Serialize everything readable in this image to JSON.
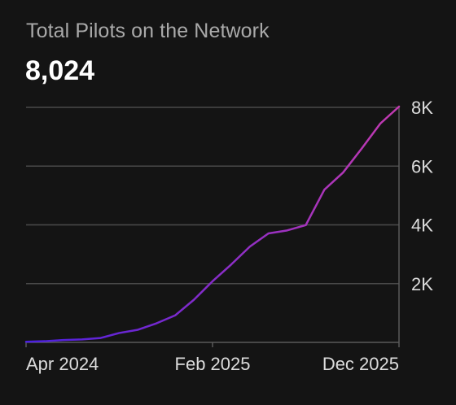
{
  "header": {
    "title": "Total Pilots on the Network",
    "total": "8,024"
  },
  "colors": {
    "background": "#141414",
    "grid": "#4a4a4a",
    "axis": "#5a5a5a",
    "text": "#dcdcdc",
    "line_start": "#4a1fe0",
    "line_end": "#c23ab0"
  },
  "chart_data": {
    "type": "line",
    "title": "Total Pilots on the Network",
    "xlabel": "",
    "ylabel": "",
    "ylim": [
      0,
      8000
    ],
    "grid": true,
    "y_axis_position": "right",
    "yticks": [
      {
        "value": 2000,
        "label": "2K"
      },
      {
        "value": 4000,
        "label": "4K"
      },
      {
        "value": 6000,
        "label": "6K"
      },
      {
        "value": 8000,
        "label": "8K"
      }
    ],
    "xticks": [
      {
        "value": "2024-04",
        "label": "Apr 2024"
      },
      {
        "value": "2025-02",
        "label": "Feb 2025"
      },
      {
        "value": "2025-12",
        "label": "Dec 2025"
      }
    ],
    "x_domain": [
      "2024-04",
      "2025-12"
    ],
    "series": [
      {
        "values": [
          {
            "x": "2024-04",
            "y": 20
          },
          {
            "x": "2024-05",
            "y": 40
          },
          {
            "x": "2024-06",
            "y": 80
          },
          {
            "x": "2024-07",
            "y": 100
          },
          {
            "x": "2024-08",
            "y": 150
          },
          {
            "x": "2024-09",
            "y": 320
          },
          {
            "x": "2024-10",
            "y": 430
          },
          {
            "x": "2024-11",
            "y": 650
          },
          {
            "x": "2024-12",
            "y": 920
          },
          {
            "x": "2025-01",
            "y": 1450
          },
          {
            "x": "2025-02",
            "y": 2080
          },
          {
            "x": "2025-03",
            "y": 2650
          },
          {
            "x": "2025-04",
            "y": 3260
          },
          {
            "x": "2025-05",
            "y": 3710
          },
          {
            "x": "2025-06",
            "y": 3810
          },
          {
            "x": "2025-07",
            "y": 3990
          },
          {
            "x": "2025-08",
            "y": 5200
          },
          {
            "x": "2025-09",
            "y": 5780
          },
          {
            "x": "2025-10",
            "y": 6600
          },
          {
            "x": "2025-11",
            "y": 7450
          },
          {
            "x": "2025-12",
            "y": 8024
          }
        ]
      }
    ]
  }
}
